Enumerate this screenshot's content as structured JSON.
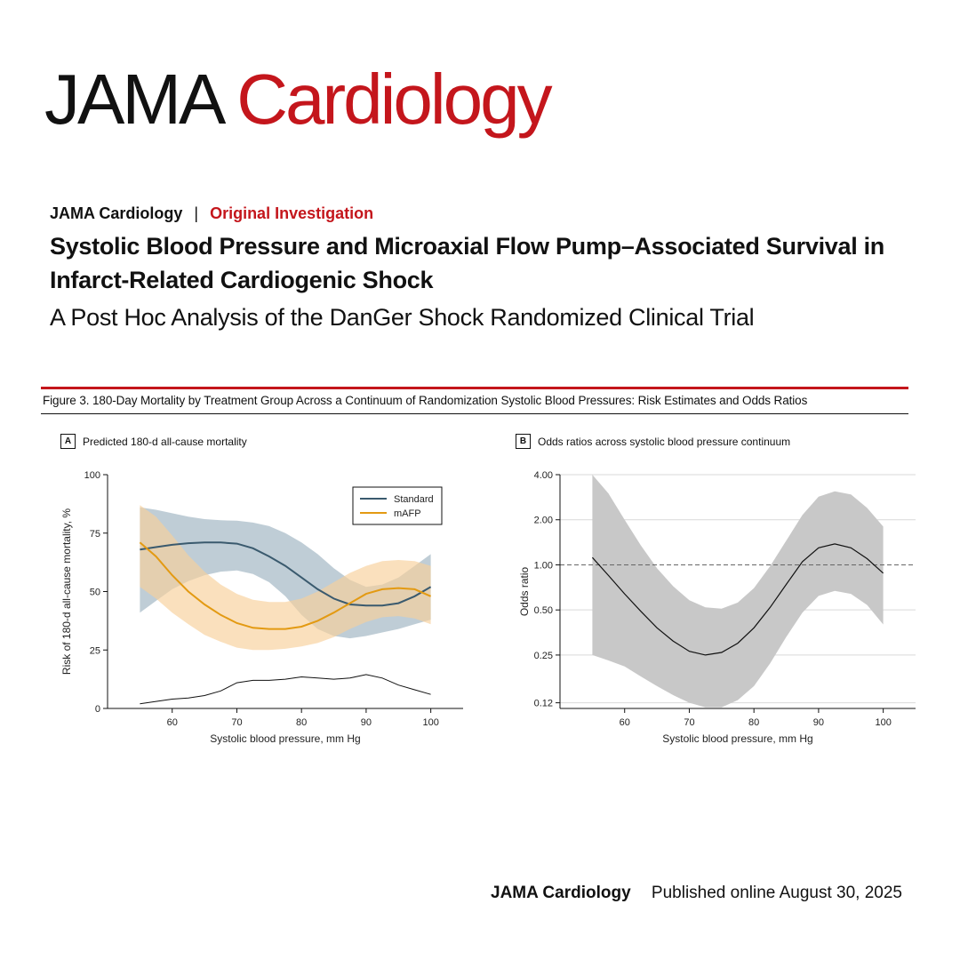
{
  "header": {
    "logo_part1": "JAMA",
    "logo_part2": "Cardiology",
    "journal": "JAMA Cardiology",
    "separator": "|",
    "article_type": "Original Investigation",
    "title": "Systolic Blood Pressure and Microaxial Flow Pump–Associated Survival in Infarct-Related Cardiogenic Shock",
    "subtitle": "A Post Hoc Analysis of the DanGer Shock Randomized Clinical Trial"
  },
  "figure": {
    "caption": "Figure 3. 180-Day Mortality by Treatment Group Across a Continuum of Randomization Systolic Blood Pressures: Risk Estimates and Odds Ratios"
  },
  "footer": {
    "journal": "JAMA Cardiology",
    "published": "Published online August  30, 2025"
  },
  "colors": {
    "brand_red": "#c4161c",
    "standard_line": "#3a5a6e",
    "standard_band": "#a9bcc8",
    "mafp_line": "#e39a12",
    "mafp_band": "#f7cf9a",
    "or_band": "#c8c8c8"
  },
  "chart_data": [
    {
      "type": "line",
      "panel_letter": "A",
      "title": "Predicted 180-d all-cause mortality",
      "xlabel": "Systolic blood pressure, mm Hg",
      "ylabel": "Risk of 180-d all-cause mortality, %",
      "xlim": [
        50,
        105
      ],
      "ylim": [
        0,
        100
      ],
      "xticks": [
        60,
        70,
        80,
        90,
        100
      ],
      "yticks": [
        0,
        25,
        50,
        75,
        100
      ],
      "grid": false,
      "legend_position": "top-right",
      "x": [
        55,
        57.5,
        60,
        62.5,
        65,
        67.5,
        70,
        72.5,
        75,
        77.5,
        80,
        82.5,
        85,
        87.5,
        90,
        92.5,
        95,
        97.5,
        100
      ],
      "series": [
        {
          "name": "Standard",
          "values": [
            68,
            69,
            70,
            70.7,
            71,
            71,
            70.5,
            68.5,
            65,
            61,
            56,
            51,
            47,
            44.5,
            44,
            44,
            45,
            48,
            52
          ],
          "lower": [
            41,
            46,
            51,
            54.5,
            57,
            58.5,
            59,
            57.5,
            54,
            48,
            40,
            34,
            31,
            30,
            31,
            32.5,
            34,
            36,
            38
          ],
          "upper": [
            86,
            85,
            83.5,
            82,
            81,
            80.5,
            80.3,
            79.5,
            78,
            75,
            71,
            66,
            60,
            55,
            52,
            53,
            56,
            61,
            66
          ]
        },
        {
          "name": "mAFP",
          "values": [
            71,
            65,
            57,
            50,
            44.5,
            40,
            36.5,
            34.5,
            34,
            34,
            35,
            37.5,
            41,
            45,
            49,
            51,
            51.5,
            51,
            48
          ],
          "lower": [
            52,
            47,
            41,
            36,
            31.5,
            28.5,
            26,
            25,
            25,
            25.5,
            26.5,
            28,
            30.5,
            34,
            37,
            39,
            39.5,
            38.5,
            36
          ],
          "upper": [
            87,
            82,
            74,
            65.5,
            58.5,
            53,
            49,
            46.5,
            45.5,
            45.5,
            47,
            50,
            54,
            58,
            61,
            63,
            63.5,
            63,
            61
          ]
        }
      ],
      "density": {
        "name": "SBP distribution",
        "values": [
          2,
          3,
          4,
          4.5,
          5.5,
          7.5,
          11,
          12,
          12,
          12.5,
          13.5,
          13,
          12.5,
          13,
          14.5,
          13,
          10,
          8,
          6
        ]
      },
      "legend": [
        "Standard",
        "mAFP"
      ]
    },
    {
      "type": "line",
      "panel_letter": "B",
      "title": "Odds ratios across systolic blood pressure continuum",
      "xlabel": "Systolic blood pressure, mm Hg",
      "ylabel": "Odds ratio",
      "xlim": [
        50,
        105
      ],
      "ylim": [
        0.11,
        4.0
      ],
      "yscale": "log",
      "xticks": [
        60,
        70,
        80,
        90,
        100
      ],
      "yticks": [
        0.12,
        0.25,
        0.5,
        1.0,
        2.0,
        4.0
      ],
      "ytick_labels": [
        "0.12",
        "0.25",
        "0.50",
        "1.00",
        "2.00",
        "4.00"
      ],
      "reference_line": 1.0,
      "grid": true,
      "x": [
        55,
        57.5,
        60,
        62.5,
        65,
        67.5,
        70,
        72.5,
        75,
        77.5,
        80,
        82.5,
        85,
        87.5,
        90,
        92.5,
        95,
        97.5,
        100
      ],
      "series": [
        {
          "name": "Odds ratio",
          "values": [
            1.12,
            0.85,
            0.64,
            0.49,
            0.38,
            0.31,
            0.265,
            0.25,
            0.26,
            0.3,
            0.38,
            0.52,
            0.74,
            1.05,
            1.3,
            1.38,
            1.3,
            1.1,
            0.88
          ],
          "lower": [
            0.25,
            0.23,
            0.21,
            0.18,
            0.155,
            0.135,
            0.12,
            0.112,
            0.112,
            0.125,
            0.155,
            0.22,
            0.33,
            0.48,
            0.62,
            0.67,
            0.64,
            0.54,
            0.4
          ],
          "upper": [
            4.0,
            3.0,
            2.0,
            1.35,
            0.95,
            0.72,
            0.58,
            0.52,
            0.51,
            0.56,
            0.7,
            0.98,
            1.45,
            2.15,
            2.85,
            3.1,
            2.95,
            2.4,
            1.8
          ]
        }
      ]
    }
  ]
}
